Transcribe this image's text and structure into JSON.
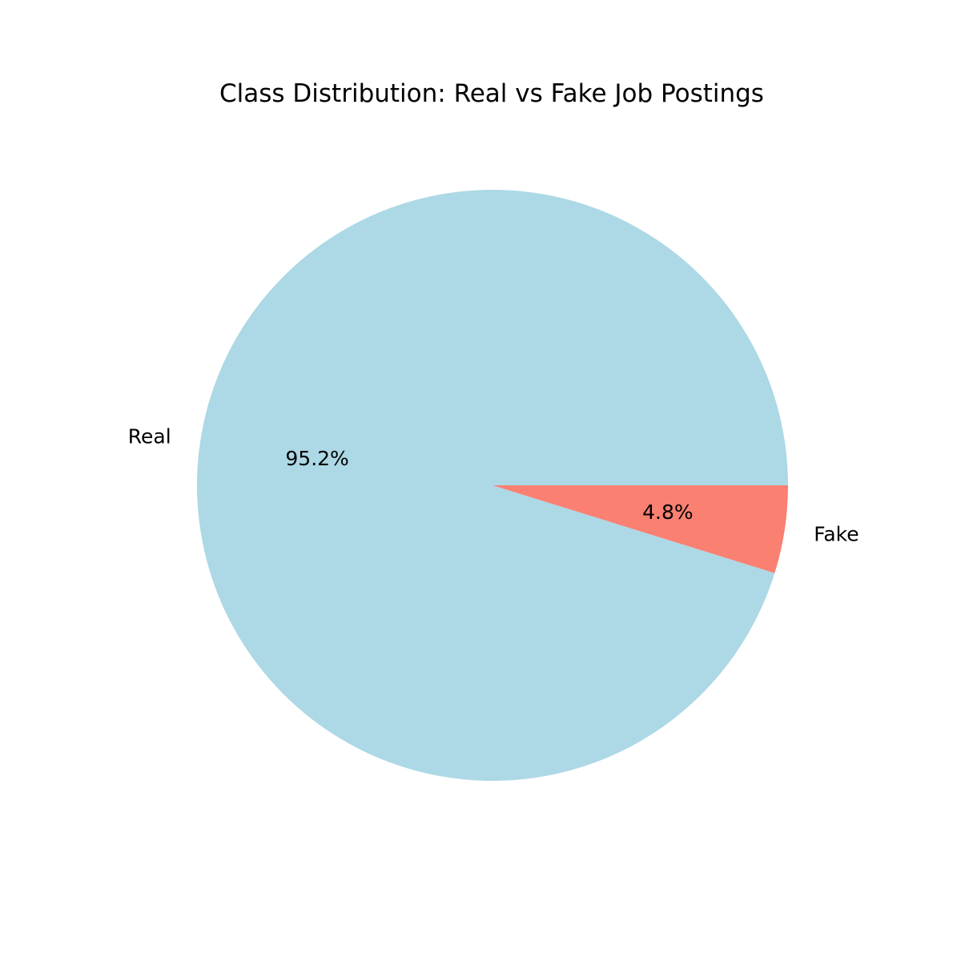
{
  "chart_data": {
    "type": "pie",
    "title": "Class Distribution: Real vs Fake Job Postings",
    "categories": [
      "Real",
      "Fake"
    ],
    "values": [
      95.2,
      4.8
    ],
    "value_labels": [
      "95.2%",
      "4.8%"
    ],
    "colors": [
      "#add8e6",
      "#fa8072"
    ],
    "start_angle_deg": 0,
    "direction": "counterclockwise",
    "legend": "none"
  }
}
